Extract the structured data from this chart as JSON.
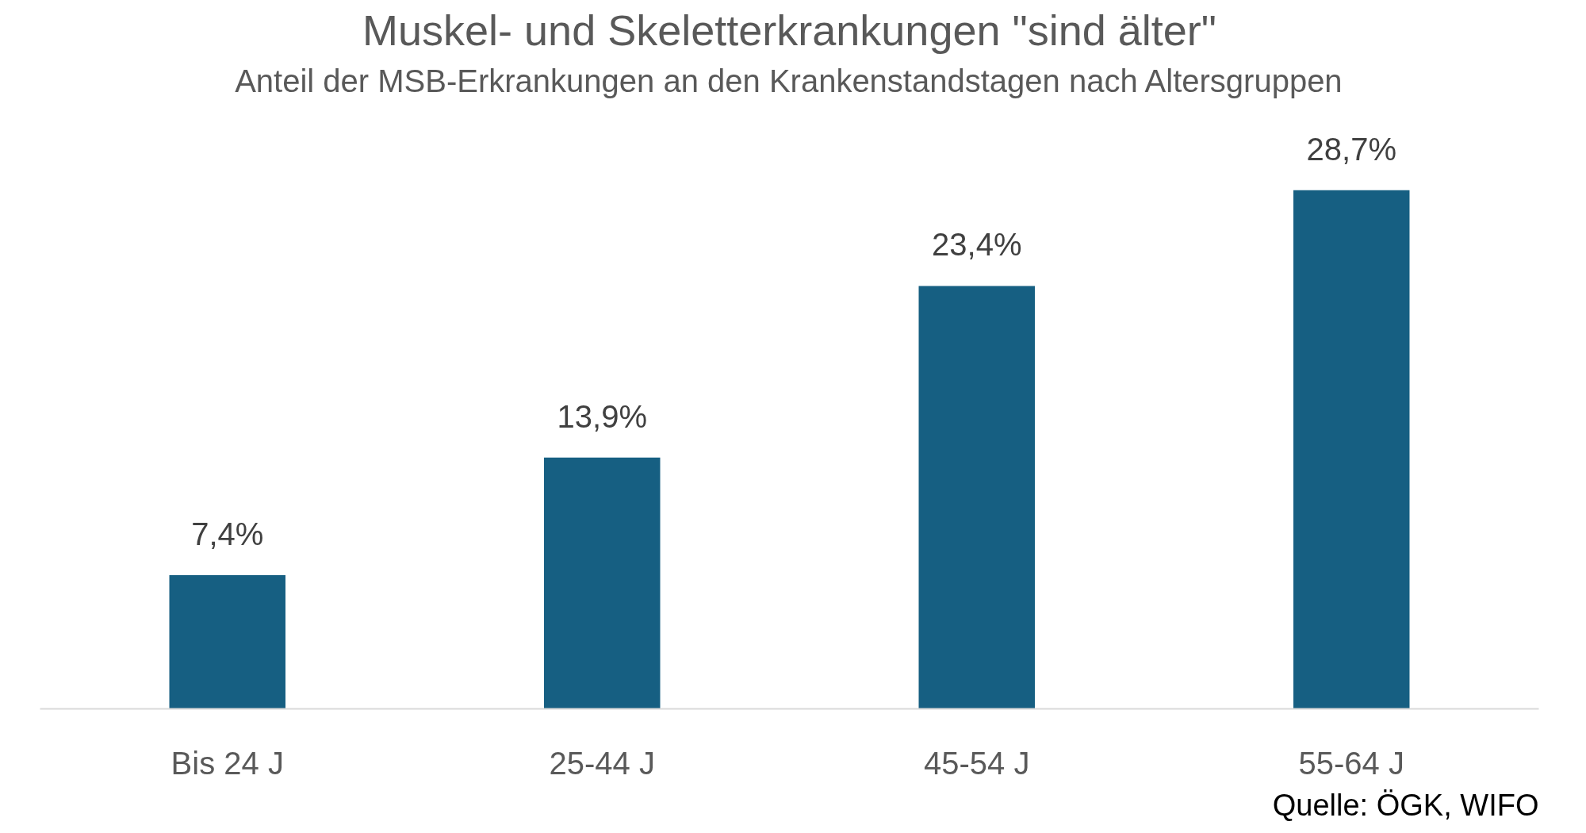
{
  "chart_data": {
    "type": "bar",
    "title": "Muskel- und Skeletterkrankungen \"sind älter\"",
    "subtitle": "Anteil der MSB-Erkrankungen an den Krankenstandstagen nach Altersgruppen",
    "categories": [
      "Bis 24 J",
      "25-44 J",
      "45-54 J",
      "55-64 J"
    ],
    "values": [
      7.4,
      13.9,
      23.4,
      28.7
    ],
    "value_labels": [
      "7,4%",
      "13,9%",
      "23,4%",
      "28,7%"
    ],
    "color": "#165f82",
    "grid": false,
    "tick_labels": "x",
    "annotations": [
      "Quelle: ÖGK, WIFO"
    ]
  }
}
